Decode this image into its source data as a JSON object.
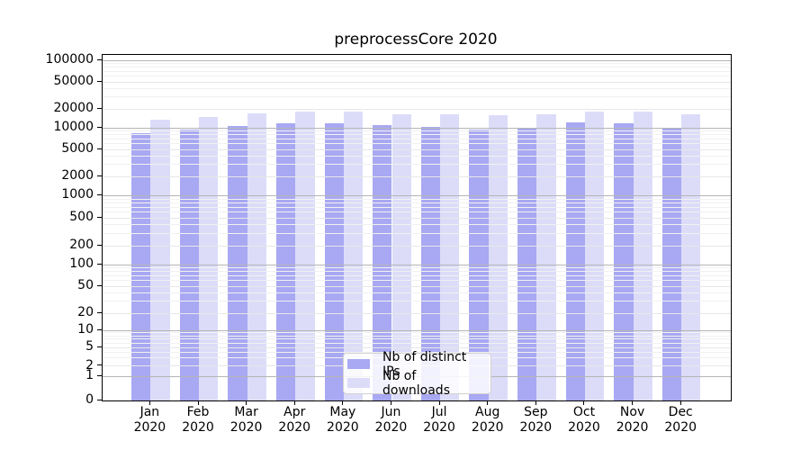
{
  "colors": {
    "bar_distinct_ips": "#a8a8f3",
    "bar_downloads": "#dcdcf9",
    "grid_major": "#b5b5b5",
    "grid_light": "#e7e7e7",
    "grid_minor": "#f1f1f1",
    "axis": "#000000",
    "legend_border": "#d2d2d2"
  },
  "chart_data": {
    "type": "bar",
    "title": "preprocessCore 2020",
    "categories": [
      "Jan",
      "Feb",
      "Mar",
      "Apr",
      "May",
      "Jun",
      "Jul",
      "Aug",
      "Sep",
      "Oct",
      "Nov",
      "Dec"
    ],
    "x_year": "2020",
    "series": [
      {
        "name": "Nb of distinct IPs",
        "color": "#a8a8f3",
        "values": [
          8400,
          9550,
          10900,
          11800,
          11900,
          11000,
          10500,
          9650,
          10250,
          12100,
          11800,
          10000
        ]
      },
      {
        "name": "Nb of downloads",
        "color": "#dcdcf9",
        "values": [
          13400,
          15000,
          17200,
          18100,
          18100,
          16400,
          16400,
          15700,
          16350,
          18300,
          18100,
          16350
        ]
      }
    ],
    "yscale": "symlog",
    "yticks": [
      0,
      1,
      2,
      5,
      10,
      20,
      50,
      100,
      200,
      500,
      1000,
      2000,
      5000,
      10000,
      20000,
      50000,
      100000
    ],
    "ylim": [
      0,
      130000
    ],
    "grid": "both",
    "legend_position": "lower center"
  }
}
